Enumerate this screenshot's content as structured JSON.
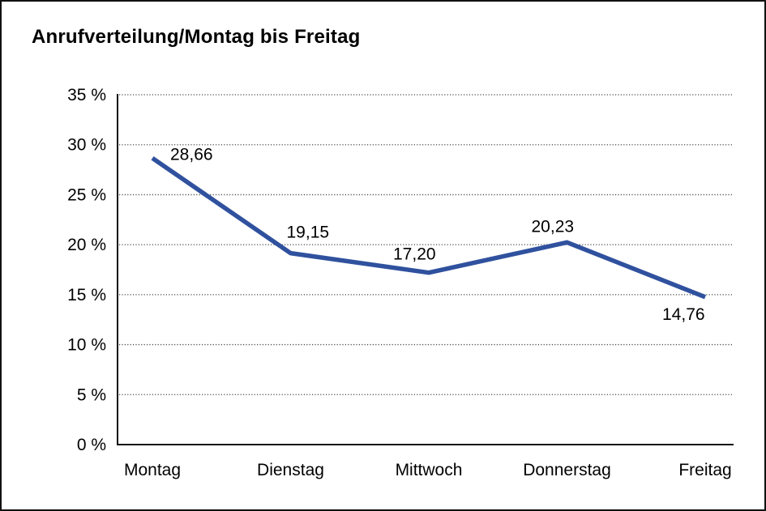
{
  "chart_data": {
    "type": "line",
    "title": "Anrufverteilung/Montag bis Freitag",
    "categories": [
      "Montag",
      "Dienstag",
      "Mittwoch",
      "Donnerstag",
      "Freitag"
    ],
    "series": [
      {
        "name": "Anrufverteilung",
        "values": [
          28.66,
          19.15,
          17.2,
          20.23,
          14.76
        ],
        "value_labels": [
          "28,66",
          "19,15",
          "17,20",
          "20,23",
          "14,76"
        ]
      }
    ],
    "xlabel": "",
    "ylabel": "",
    "ylim": [
      0,
      35
    ],
    "y_ticks": [
      0,
      5,
      10,
      15,
      20,
      25,
      30,
      35
    ],
    "y_tick_labels": [
      "0 %",
      "5 %",
      "10 %",
      "15 %",
      "20 %",
      "25 %",
      "30 %",
      "35 %"
    ],
    "grid": "dotted-horizontal",
    "legend": "none",
    "line_color": "#2F519E",
    "grid_color": "#4a4a4a",
    "axis_color": "#111111",
    "text_color": "#000000",
    "background_color": "#ffffff"
  }
}
